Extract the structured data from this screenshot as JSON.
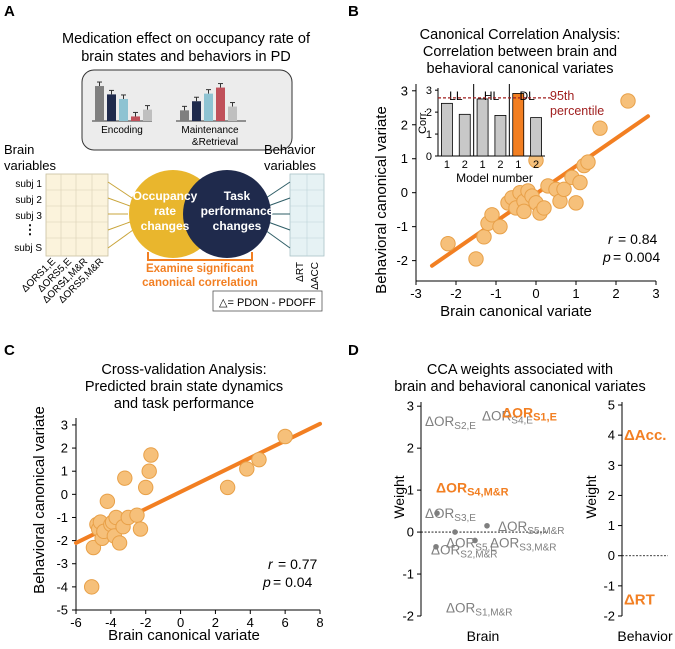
{
  "colors": {
    "orange": "#f27f22",
    "marker": "#f6c07a",
    "marker_edge": "#e8a048",
    "gold": "#e9b62d",
    "navy": "#1f2a4c",
    "grey": "#7f7f7f",
    "darkred": "#a01f1f",
    "lightbar": "#c8c8c8"
  },
  "panelA": {
    "letter": "A",
    "title": [
      "Medication effect on occupancy rate of",
      "brain states and behaviors in PD"
    ],
    "bar_groups": [
      "Encoding",
      "Maintenance",
      "&Retrieval"
    ],
    "bars_encoding": [
      0.92,
      0.7,
      0.58,
      0.12,
      0.3
    ],
    "bars_maint": [
      0.28,
      0.52,
      0.72,
      0.88,
      0.38
    ],
    "bar_colors": [
      "#7f7f7f",
      "#1f2a4c",
      "#8ec3d2",
      "#c0505a",
      "#bfbfbf"
    ],
    "brain_label": [
      "Brain",
      "variables"
    ],
    "behavior_label": [
      "Behavior",
      "variables"
    ],
    "subjects": [
      "subj 1",
      "subj 2",
      "subj 3",
      "⋮",
      "subj S"
    ],
    "brain_cols": [
      "ΔORS1,E",
      "ΔORS5,E",
      "ΔORS1,M&R",
      "ΔORS5,M&R"
    ],
    "brain_dots": "⋯",
    "behavior_cols": [
      "ΔRT",
      "ΔACC"
    ],
    "circle_left": [
      "Occupancy",
      "rate",
      "changes"
    ],
    "circle_right": [
      "Task",
      "performance",
      "changes"
    ],
    "examine": [
      "Examine significant",
      "canonical correlation"
    ],
    "legend": "△= PDON - PDOFF"
  },
  "panelB": {
    "letter": "B",
    "title": [
      "Canonical Correlation Analysis:",
      "Correlation between brain and",
      "behavioral canonical variates"
    ],
    "chart_data": {
      "type": "scatter",
      "x": [
        -2.2,
        -1.5,
        -1.3,
        -1.2,
        -1.1,
        -0.9,
        -0.7,
        -0.6,
        -0.5,
        -0.4,
        -0.3,
        -0.3,
        -0.2,
        -0.1,
        0.0,
        0.1,
        0.2,
        0.3,
        0.5,
        0.6,
        0.7,
        0.9,
        1.0,
        1.1,
        1.2,
        1.3,
        1.6,
        2.3,
        0.0
      ],
      "y": [
        -1.5,
        -1.95,
        -1.3,
        -0.9,
        -0.65,
        -1.0,
        -0.3,
        -0.15,
        -0.45,
        0.0,
        -0.25,
        -0.55,
        0.05,
        -0.1,
        -0.3,
        -0.6,
        -0.45,
        0.2,
        0.1,
        -0.25,
        0.1,
        0.45,
        -0.3,
        0.3,
        0.8,
        0.9,
        1.9,
        2.7,
        0.95
      ],
      "fit": {
        "x": [
          -2.6,
          2.8
        ],
        "y": [
          -2.15,
          2.25
        ]
      },
      "xlabel": "Brain canonical variate",
      "ylabel": "Behavioral canonical variate",
      "xticks": [
        -3,
        -2,
        -1,
        0,
        1,
        2,
        3
      ],
      "yticks": [
        -2,
        -1,
        0,
        1,
        2,
        3
      ],
      "xlim": [
        -3,
        3
      ],
      "ylim": [
        -2.6,
        3.2
      ],
      "stats": {
        "r": "r",
        "r_val": "= 0.84",
        "p": "p",
        "p_val": "= 0.004"
      },
      "inset": {
        "type": "bar",
        "ylabel": "Corr.",
        "xlabel": "Model number",
        "groups": [
          "LL",
          "HL",
          "DL"
        ],
        "categories": [
          "1",
          "2",
          "1",
          "2",
          "1",
          "2"
        ],
        "values": [
          2.4,
          1.9,
          2.6,
          1.85,
          2.85,
          1.75
        ],
        "threshold": 2.65,
        "threshold_label": [
          "95th",
          "percentile"
        ],
        "yticks": [
          0,
          1,
          2,
          3
        ],
        "ylim": [
          0,
          3.1
        ]
      }
    }
  },
  "panelC": {
    "letter": "C",
    "title": [
      "Cross-validation Analysis:",
      "Predicted brain state dynamics",
      "and task performance"
    ],
    "chart_data": {
      "type": "scatter",
      "x": [
        -5.1,
        -5.0,
        -4.8,
        -4.7,
        -4.6,
        -4.5,
        -4.4,
        -4.2,
        -4.0,
        -3.9,
        -3.8,
        -3.7,
        -3.5,
        -3.3,
        -3.2,
        -3.0,
        -2.5,
        -2.3,
        -2.0,
        -1.8,
        -1.7,
        2.7,
        3.8,
        4.5,
        6.0
      ],
      "y": [
        -4.0,
        -2.3,
        -1.3,
        -1.5,
        -1.2,
        -1.9,
        -1.6,
        -0.3,
        -1.3,
        -1.2,
        -1.8,
        -1.0,
        -2.1,
        -1.4,
        0.7,
        -1.0,
        -0.9,
        -1.5,
        0.3,
        1.0,
        1.7,
        0.3,
        1.1,
        1.5,
        2.5
      ],
      "fit": {
        "x": [
          -6,
          8
        ],
        "y": [
          -2.1,
          3.05
        ]
      },
      "xlabel": "Brain canonical variate",
      "ylabel": "Behavioral canonical variate",
      "xticks": [
        -6,
        -4,
        -2,
        0,
        2,
        4,
        6,
        8
      ],
      "yticks": [
        -5,
        -4,
        -3,
        -2,
        -1,
        0,
        1,
        2,
        3
      ],
      "xlim": [
        -6,
        8
      ],
      "ylim": [
        -5,
        3.3
      ],
      "stats": {
        "r": "r",
        "r_val": "= 0.77",
        "p": "p",
        "p_val": "= 0.04"
      }
    }
  },
  "panelD": {
    "letter": "D",
    "title": [
      "CCA weights associated with",
      "brain and behavioral canonical variates"
    ],
    "chart_data": {
      "type": "scatter",
      "ylabel": "Weight",
      "brain": {
        "xlabel": "Brain",
        "yticks": [
          -2,
          -1,
          0,
          1,
          2,
          3
        ],
        "ylim": [
          -2,
          3.1
        ],
        "points": [
          {
            "name": "ΔORS4,E",
            "label": "ΔOR",
            "sub": "S4,E",
            "value": 2.9,
            "highlight": false
          },
          {
            "name": "ΔORS2,E",
            "label": "ΔOR",
            "sub": "S2,E",
            "value": 2.65,
            "highlight": false
          },
          {
            "name": "ΔORS1,E",
            "label": "ΔOR",
            "sub": "S1,E",
            "value": 2.75,
            "highlight": true
          },
          {
            "name": "ΔORS4,M&R",
            "label": "ΔOR",
            "sub": "S4,M&R",
            "value": 1.2,
            "highlight": true
          },
          {
            "name": "ΔORS3,E",
            "label": "ΔOR",
            "sub": "S3,E",
            "value": 0.45,
            "highlight": false
          },
          {
            "name": "ΔORS5,M&R",
            "label": "ΔOR",
            "sub": "S5,M&R",
            "value": 0.15,
            "highlight": false
          },
          {
            "name": "ΔORS3,M&R",
            "label": "ΔOR",
            "sub": "S3,M&R",
            "value": -0.3,
            "highlight": false
          },
          {
            "name": "ΔORS5,E",
            "label": "ΔOR",
            "sub": "S5,E",
            "value": -0.2,
            "highlight": false
          },
          {
            "name": "ΔORS2,M&R",
            "label": "ΔOR",
            "sub": "S2,M&R",
            "value": -0.7,
            "highlight": false
          },
          {
            "name": "ΔORS1,M&R",
            "label": "ΔOR",
            "sub": "S1,M&R",
            "value": -1.7,
            "highlight": false
          }
        ]
      },
      "behavior": {
        "xlabel": "Behavior",
        "yticks": [
          -2,
          -1,
          0,
          1,
          2,
          3,
          4,
          5
        ],
        "ylim": [
          -2,
          5.1
        ],
        "points": [
          {
            "name": "ΔAcc.",
            "value": 4.0
          },
          {
            "name": "ΔRT",
            "value": -1.45
          }
        ]
      }
    }
  }
}
